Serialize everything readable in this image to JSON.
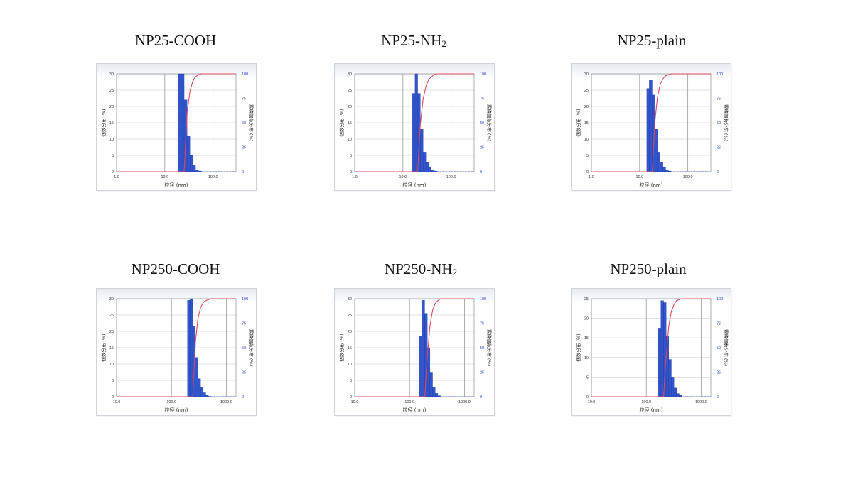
{
  "colors": {
    "bar": "#3355cc",
    "bar_edge": "#1c38a8",
    "cumulative": "#d8485e",
    "right_axis": "#2a3acb",
    "grid": "#9a9a9a"
  },
  "chart_data": [
    {
      "title": "NP25-COOH",
      "title_main": "NP25-COOH",
      "title_sub": "",
      "type": "bar",
      "xlabel": "粒径 (nm)",
      "ylabel": "個数分布 (%)",
      "y2label": "累積個数分布 (%)",
      "xscale": "log",
      "xlim": [
        1.0,
        300.0
      ],
      "xticks": [
        "1.0",
        "10.0",
        "100.0"
      ],
      "ylim": [
        0,
        30
      ],
      "yticks": [
        "0",
        "5",
        "10",
        "15",
        "20",
        "25",
        "30"
      ],
      "y2lim": [
        0,
        100
      ],
      "y2ticks": [
        "0",
        "25",
        "50",
        "75",
        "100"
      ],
      "bins": [
        20.5,
        23.5,
        27.0,
        31.0,
        35.5,
        40.5,
        46.5,
        53.5
      ],
      "values": [
        30,
        30,
        22,
        11,
        5,
        2,
        0.5,
        0.2
      ],
      "cumulative": [
        0,
        0,
        0,
        60,
        82,
        92,
        97,
        99,
        100
      ]
    },
    {
      "title": "NP25-NH2",
      "title_main": "NP25-NH",
      "title_sub": "2",
      "type": "bar",
      "xlabel": "粒径 (nm)",
      "ylabel": "個数分布 (%)",
      "y2label": "累積個数分布 (%)",
      "xscale": "log",
      "xlim": [
        1.0,
        300.0
      ],
      "xticks": [
        "1.0",
        "10.0",
        "100.0"
      ],
      "ylim": [
        0,
        30
      ],
      "yticks": [
        "0",
        "5",
        "10",
        "15",
        "20",
        "25",
        "30"
      ],
      "y2lim": [
        0,
        100
      ],
      "y2ticks": [
        "0",
        "25",
        "50",
        "75",
        "100"
      ],
      "bins": [
        16.5,
        19.0,
        21.5,
        24.5,
        28.0,
        32.0,
        36.5,
        41.5,
        47.5
      ],
      "values": [
        24,
        30,
        24,
        13,
        6,
        3,
        1.5,
        0.5,
        0.2
      ],
      "cumulative": [
        0,
        0,
        0,
        48,
        74,
        87,
        94,
        97,
        99,
        100
      ]
    },
    {
      "title": "NP25-plain",
      "title_main": "NP25-plain",
      "title_sub": "",
      "type": "bar",
      "xlabel": "粒径 (nm)",
      "ylabel": "個数分布 (%)",
      "y2label": "累積個数分布 (%)",
      "xscale": "log",
      "xlim": [
        1.0,
        300.0
      ],
      "xticks": [
        "1.0",
        "10.0",
        "100.0"
      ],
      "ylim": [
        0,
        30
      ],
      "yticks": [
        "0",
        "5",
        "10",
        "15",
        "20",
        "25",
        "30"
      ],
      "y2lim": [
        0,
        100
      ],
      "y2ticks": [
        "0",
        "25",
        "50",
        "75",
        "100"
      ],
      "bins": [
        15.0,
        17.0,
        19.5,
        22.0,
        25.0,
        28.5,
        32.5,
        37.0,
        42.0
      ],
      "values": [
        25.5,
        28,
        23.5,
        13,
        6,
        3,
        1.5,
        0.5,
        0.2
      ],
      "cumulative": [
        0,
        0,
        0,
        50,
        76,
        89,
        95,
        98,
        99,
        100
      ]
    },
    {
      "title": "NP250-COOH",
      "title_main": "NP250-COOH",
      "title_sub": "",
      "type": "bar",
      "xlabel": "粒径 (nm)",
      "ylabel": "個数分布 (%)",
      "y2label": "累積個数分布 (%)",
      "xscale": "log",
      "xlim": [
        10.0,
        1500.0
      ],
      "xticks": [
        "10.0",
        "100.0",
        "1000.0"
      ],
      "ylim": [
        0,
        30
      ],
      "yticks": [
        "0",
        "5",
        "10",
        "15",
        "20",
        "25",
        "30"
      ],
      "y2lim": [
        0,
        100
      ],
      "y2ticks": [
        "0",
        "25",
        "50",
        "75",
        "100"
      ],
      "bins": [
        207,
        231,
        258,
        288,
        321,
        358,
        399,
        445,
        497
      ],
      "values": [
        29.5,
        30,
        21.5,
        12,
        5.5,
        3,
        1.2,
        0.4,
        0.1
      ],
      "cumulative": [
        0,
        0,
        0,
        55,
        80,
        91,
        96,
        98,
        99,
        100
      ]
    },
    {
      "title": "NP250-NH2",
      "title_main": "NP250-NH",
      "title_sub": "2",
      "type": "bar",
      "xlabel": "粒径 (nm)",
      "ylabel": "個数分布 (%)",
      "y2label": "累積個数分布 (%)",
      "xscale": "log",
      "xlim": [
        10.0,
        1500.0
      ],
      "xticks": [
        "10.0",
        "100.0",
        "1000.0"
      ],
      "ylim": [
        0,
        30
      ],
      "yticks": [
        "0",
        "5",
        "10",
        "15",
        "20",
        "25",
        "30"
      ],
      "y2lim": [
        0,
        100
      ],
      "y2ticks": [
        "0",
        "25",
        "50",
        "75",
        "100"
      ],
      "bins": [
        160,
        178,
        199,
        222,
        248,
        277,
        309,
        345
      ],
      "values": [
        18.5,
        29.5,
        25.5,
        15,
        7.5,
        3,
        1,
        0.3
      ],
      "cumulative": [
        0,
        0,
        0,
        40,
        72,
        88,
        95,
        98,
        100
      ]
    },
    {
      "title": "NP250-plain",
      "title_main": "NP250-plain",
      "title_sub": "",
      "type": "bar",
      "xlabel": "粒径 (nm)",
      "ylabel": "個数分布 (%)",
      "y2label": "累積個数分布 (%)",
      "xscale": "log",
      "xlim": [
        10.0,
        1500.0
      ],
      "xticks": [
        "10.0",
        "100.0",
        "1000.0"
      ],
      "ylim": [
        0,
        25
      ],
      "yticks": [
        "0",
        "5",
        "10",
        "15",
        "20",
        "25"
      ],
      "y2lim": [
        0,
        100
      ],
      "y2ticks": [
        "0",
        "25",
        "50",
        "75",
        "100"
      ],
      "bins": [
        175,
        195,
        218,
        243,
        271,
        302,
        337,
        376,
        420
      ],
      "values": [
        17.5,
        24.5,
        24,
        15.5,
        9.5,
        5,
        2.2,
        0.8,
        0.3
      ],
      "cumulative": [
        0,
        0,
        0,
        42,
        72,
        87,
        94,
        98,
        99,
        100
      ]
    }
  ]
}
